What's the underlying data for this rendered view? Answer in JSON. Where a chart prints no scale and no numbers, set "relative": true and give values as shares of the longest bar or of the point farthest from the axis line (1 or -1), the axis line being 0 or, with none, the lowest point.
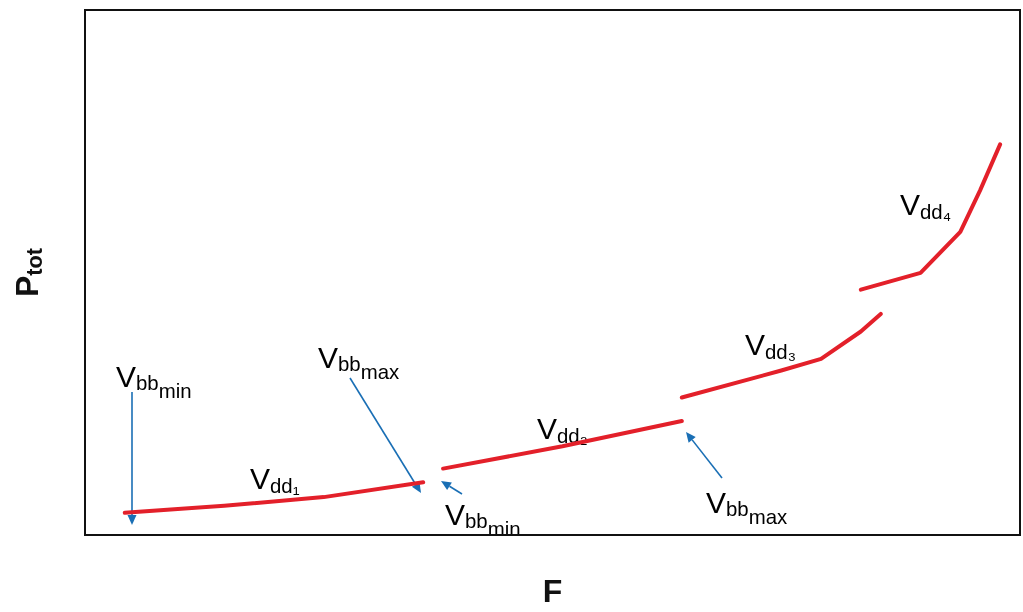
{
  "chart_data": {
    "type": "line",
    "relative": true,
    "xlabel": "F",
    "ylabel": "P$_{tot}$",
    "categories": [
      null,
      null,
      null,
      null,
      null,
      null,
      null,
      null,
      null,
      null,
      null,
      null,
      null,
      null,
      null,
      null,
      null,
      null,
      null,
      null,
      null,
      null,
      null,
      null,
      null,
      null,
      null,
      null,
      null,
      null,
      null,
      null,
      null,
      null,
      null,
      null,
      null,
      null,
      null,
      null,
      null,
      null,
      null,
      null,
      null,
      null,
      null,
      null
    ],
    "series": [
      {
        "color": "#e3202a",
        "values": [
          null,
          null,
          0.057,
          null,
          null,
          null,
          null,
          0.075,
          null,
          null,
          null,
          null,
          0.097,
          null,
          null,
          null,
          null,
          0.135,
          null,
          null,
          null,
          null,
          null,
          null,
          null,
          null,
          null,
          null,
          null,
          null,
          null,
          null,
          null,
          null,
          null,
          null,
          null,
          null,
          null,
          null,
          null,
          null,
          null,
          null,
          null,
          null,
          null,
          null
        ]
      },
      {
        "color": "#e3202a",
        "values": [
          null,
          null,
          null,
          null,
          null,
          null,
          null,
          null,
          null,
          null,
          null,
          null,
          null,
          null,
          null,
          null,
          null,
          null,
          0.17,
          null,
          null,
          null,
          null,
          null,
          0.227,
          null,
          null,
          null,
          null,
          null,
          0.292,
          null,
          null,
          null,
          null,
          null,
          null,
          null,
          null,
          null,
          null,
          null,
          null,
          null,
          null,
          null,
          null,
          null
        ]
      },
      {
        "color": "#e3202a",
        "values": [
          null,
          null,
          null,
          null,
          null,
          null,
          null,
          null,
          null,
          null,
          null,
          null,
          null,
          null,
          null,
          null,
          null,
          null,
          null,
          null,
          null,
          null,
          null,
          null,
          null,
          null,
          null,
          null,
          null,
          null,
          0.352,
          null,
          null,
          null,
          null,
          0.421,
          null,
          0.451,
          null,
          0.521,
          0.566,
          null,
          null,
          null,
          null,
          null,
          null,
          null
        ]
      },
      {
        "color": "#e3202a",
        "values": [
          null,
          null,
          null,
          null,
          null,
          null,
          null,
          null,
          null,
          null,
          null,
          null,
          null,
          null,
          null,
          null,
          null,
          null,
          null,
          null,
          null,
          null,
          null,
          null,
          null,
          null,
          null,
          null,
          null,
          null,
          null,
          null,
          null,
          null,
          null,
          null,
          null,
          null,
          null,
          0.628,
          null,
          null,
          0.671,
          null,
          0.776,
          0.883,
          1.0,
          null
        ]
      }
    ],
    "annotations": [
      "V$_{dd₁}$",
      "V$_{dd₂}$",
      "V$_{dd₃}$",
      "V$_{dd₄}$",
      "V$_{bb}$$_{min}$",
      "V$_{bb}$$_{max}$",
      "V$_{bb}$$_{min}$",
      "V$_{bb}$$_{max}$"
    ],
    "grid": false,
    "marker": "none",
    "line_style": "solid"
  }
}
